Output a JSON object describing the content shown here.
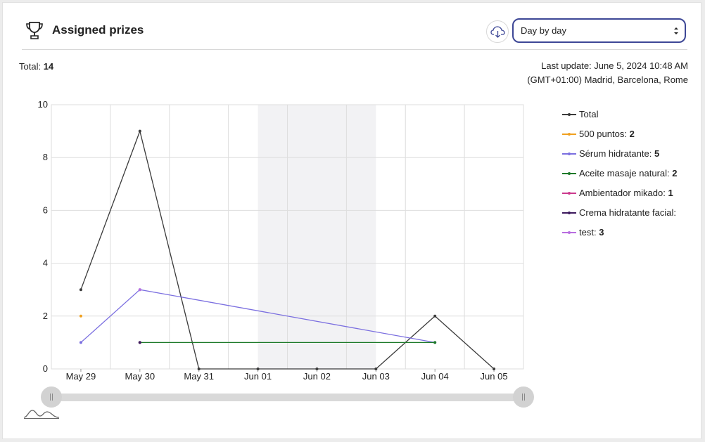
{
  "header": {
    "title": "Assigned prizes",
    "icons": [
      "trophy-icon",
      "cloud-download-icon",
      "select-arrows-icon"
    ],
    "select_value": "Day by day"
  },
  "summary": {
    "total_label": "Total:",
    "total_value": "14",
    "last_update_line1": "Last update: June 5, 2024 10:48 AM",
    "last_update_line2": "(GMT+01:00) Madrid, Barcelona, Rome"
  },
  "colors": {
    "accent": "#3d4796",
    "total": "#3a3a3a",
    "puntos": "#f0a020",
    "serum": "#7b6fe0",
    "aceite": "#1e7a2a",
    "ambientador": "#cc3a8e",
    "crema": "#3d1a5e",
    "test": "#b86de0"
  },
  "legend": [
    {
      "label": "Total",
      "value": "",
      "color": "#3a3a3a"
    },
    {
      "label": "500 puntos:",
      "value": "2",
      "color": "#f0a020"
    },
    {
      "label": "Sérum hidratante:",
      "value": "5",
      "color": "#7b6fe0"
    },
    {
      "label": "Aceite masaje natural:",
      "value": "2",
      "color": "#1e7a2a"
    },
    {
      "label": "Ambientador mikado:",
      "value": "1",
      "color": "#cc3a8e"
    },
    {
      "label": "Crema hidratante facial:",
      "value": "",
      "color": "#3d1a5e"
    },
    {
      "label": "test:",
      "value": "3",
      "color": "#b86de0"
    }
  ],
  "chart_data": {
    "type": "line",
    "categories": [
      "May 29",
      "May 30",
      "May 31",
      "Jun 01",
      "Jun 02",
      "Jun 03",
      "Jun 04",
      "Jun 05"
    ],
    "ylim": [
      0,
      10
    ],
    "yticks": [
      "0",
      "2",
      "4",
      "6",
      "8",
      "10"
    ],
    "grid": true,
    "weekend_shading": [
      "Jun 01",
      "Jun 02"
    ],
    "legend_position": "right",
    "series": [
      {
        "name": "Total",
        "color": "#3a3a3a",
        "points": [
          [
            "May 29",
            3
          ],
          [
            "May 30",
            9
          ],
          [
            "May 31",
            0
          ],
          [
            "Jun 01",
            0
          ],
          [
            "Jun 02",
            0
          ],
          [
            "Jun 03",
            0
          ],
          [
            "Jun 04",
            2
          ],
          [
            "Jun 05",
            0
          ]
        ]
      },
      {
        "name": "500 puntos",
        "color": "#f0a020",
        "points": [
          [
            "May 29",
            2
          ]
        ]
      },
      {
        "name": "Sérum hidratante",
        "color": "#7b6fe0",
        "points": [
          [
            "May 29",
            1
          ],
          [
            "May 30",
            3
          ],
          [
            "Jun 04",
            1
          ]
        ]
      },
      {
        "name": "Aceite masaje natural",
        "color": "#1e7a2a",
        "points": [
          [
            "May 30",
            1
          ],
          [
            "Jun 04",
            1
          ]
        ]
      },
      {
        "name": "Ambientador mikado",
        "color": "#cc3a8e",
        "points": [
          [
            "May 30",
            1
          ]
        ]
      },
      {
        "name": "Crema hidratante facial",
        "color": "#3d1a5e",
        "points": [
          [
            "May 30",
            1
          ]
        ]
      },
      {
        "name": "test",
        "color": "#b86de0",
        "points": [
          [
            "May 30",
            3
          ]
        ]
      }
    ]
  }
}
